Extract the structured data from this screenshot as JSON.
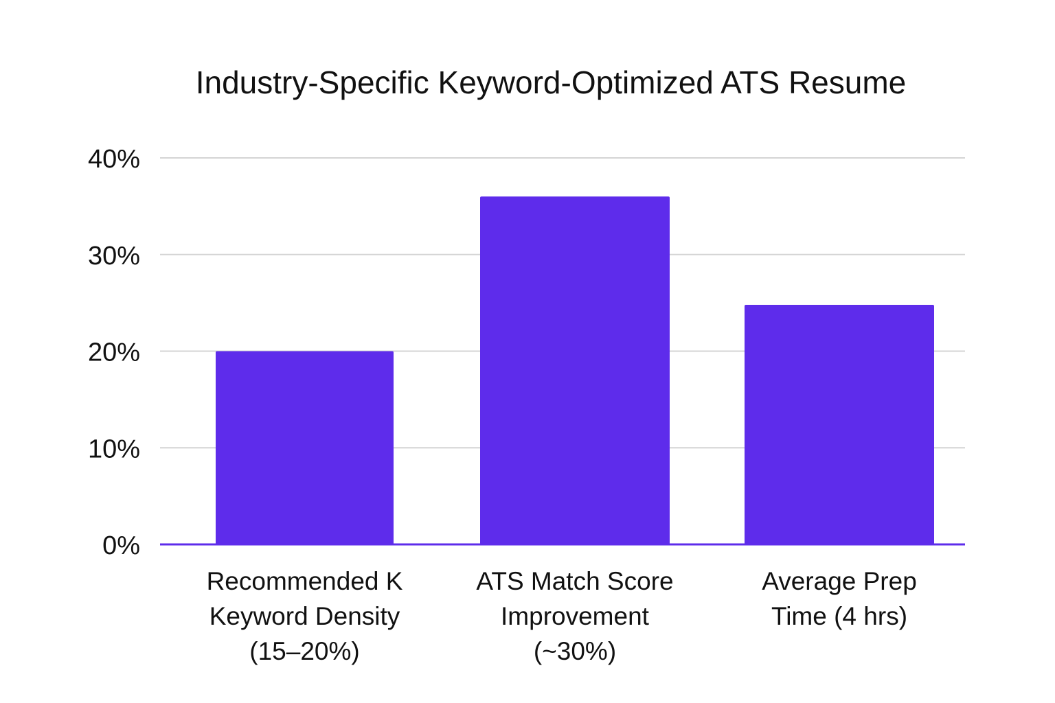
{
  "chart_data": {
    "type": "bar",
    "title": "Industry-Specific Keyword-Optimized ATS Resume",
    "xlabel": "",
    "ylabel": "",
    "categories": [
      [
        "Recommended K",
        "Keyword Density",
        "(15–20%)"
      ],
      [
        "ATS Match Score",
        "Improvement",
        "(~30%)"
      ],
      [
        "Average Prep",
        "Time (4 hrs)"
      ]
    ],
    "values": [
      20,
      36,
      24.8
    ],
    "ylim": [
      0,
      40
    ],
    "yticks": [
      0,
      10,
      20,
      30,
      40
    ],
    "ytick_labels": [
      "0%",
      "10%",
      "20%",
      "30%",
      "40%"
    ],
    "grid": true,
    "legend": "none",
    "colors": {
      "bar": "#5e2ceb",
      "baseline": "#5e2ceb",
      "grid": "#d4d4d4",
      "text": "#111111"
    }
  }
}
